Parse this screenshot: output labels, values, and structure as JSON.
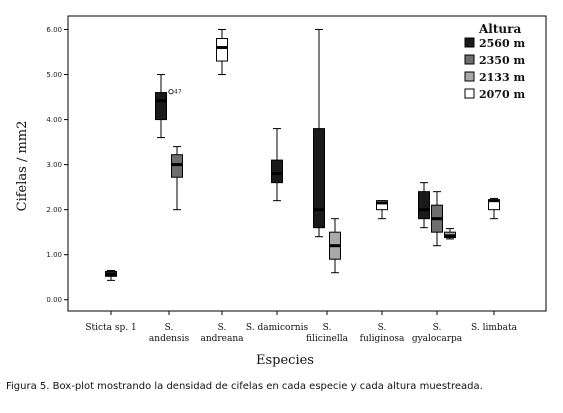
{
  "caption": "Figura 5. Box-plot mostrando la densidad de cifelas en cada especie y cada altura muestreada.",
  "chart_data": {
    "type": "box",
    "xlabel": "Especies",
    "ylabel": "Cifelas / mm2",
    "ylim": [
      -0.25,
      6.3
    ],
    "yticks": [
      "0.00",
      "1.00",
      "2.00",
      "3.00",
      "4.00",
      "5.00",
      "6.00"
    ],
    "categories": [
      "Sticta sp. 1",
      "S. andensis",
      "S. andreana",
      "S. damicornis",
      "S. filicinella",
      "S. fuliginosa",
      "S. gyalocarpa",
      "S. limbata"
    ],
    "category_labels": [
      [
        "Sticta sp. 1"
      ],
      [
        "S.",
        "andensis"
      ],
      [
        "S.",
        "andreana"
      ],
      [
        "S. damicornis"
      ],
      [
        "S.",
        "filicinella"
      ],
      [
        "S.",
        "fuliginosa"
      ],
      [
        "S.",
        "gyalocarpa"
      ],
      [
        "S. limbata"
      ]
    ],
    "legend": {
      "title": "Altura",
      "position": "top-right",
      "entries": [
        {
          "label": "2560 m",
          "color": "#1a1a1a"
        },
        {
          "label": "2350 m",
          "color": "#6e6e6e"
        },
        {
          "label": "2133 m",
          "color": "#a9a9a9"
        },
        {
          "label": "2070 m",
          "color": "#ffffff"
        }
      ]
    },
    "boxes": [
      {
        "category": "Sticta sp. 1",
        "altura": "2560 m",
        "min": 0.43,
        "q1": 0.52,
        "median": 0.55,
        "q3": 0.63,
        "max": 0.65
      },
      {
        "category": "S. andensis",
        "altura": "2560 m",
        "min": 3.6,
        "q1": 4.0,
        "median": 4.42,
        "q3": 4.6,
        "max": 5.0,
        "outliers": [
          {
            "value": 4.62,
            "label": "47"
          }
        ]
      },
      {
        "category": "S. andensis",
        "altura": "2350 m",
        "min": 2.0,
        "q1": 2.72,
        "median": 3.0,
        "q3": 3.22,
        "max": 3.4
      },
      {
        "category": "S. andreana",
        "altura": "2070 m",
        "min": 5.0,
        "q1": 5.3,
        "median": 5.6,
        "q3": 5.8,
        "max": 6.0
      },
      {
        "category": "S. damicornis",
        "altura": "2560 m",
        "min": 2.2,
        "q1": 2.6,
        "median": 2.8,
        "q3": 3.1,
        "max": 3.8
      },
      {
        "category": "S. filicinella",
        "altura": "2560 m",
        "min": 1.4,
        "q1": 1.6,
        "median": 2.0,
        "q3": 3.8,
        "max": 6.0
      },
      {
        "category": "S. filicinella",
        "altura": "2133 m",
        "min": 0.6,
        "q1": 0.9,
        "median": 1.2,
        "q3": 1.5,
        "max": 1.8
      },
      {
        "category": "S. fuliginosa",
        "altura": "2070 m",
        "min": 1.8,
        "q1": 2.0,
        "median": 2.15,
        "q3": 2.2,
        "max": 2.2
      },
      {
        "category": "S. gyalocarpa",
        "altura": "2560 m",
        "min": 1.6,
        "q1": 1.8,
        "median": 2.0,
        "q3": 2.4,
        "max": 2.6
      },
      {
        "category": "S. gyalocarpa",
        "altura": "2350 m",
        "min": 1.2,
        "q1": 1.5,
        "median": 1.8,
        "q3": 2.1,
        "max": 2.4
      },
      {
        "category": "S. gyalocarpa",
        "altura": "2133 m",
        "min": 1.35,
        "q1": 1.38,
        "median": 1.42,
        "q3": 1.5,
        "max": 1.58
      },
      {
        "category": "S. limbata",
        "altura": "2070 m",
        "min": 1.8,
        "q1": 2.0,
        "median": 2.2,
        "q3": 2.22,
        "max": 2.25
      }
    ]
  }
}
